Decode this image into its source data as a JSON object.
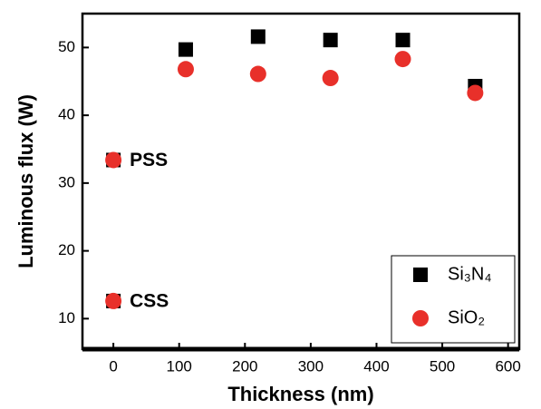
{
  "chart_data": {
    "type": "scatter",
    "x_label": "Thickness (nm)",
    "y_label": "Luminous flux (W)",
    "xlim": [
      -47,
      617
    ],
    "ylim": [
      5.5,
      55
    ],
    "xticks": [
      0,
      100,
      200,
      300,
      400,
      500,
      600
    ],
    "yticks": [
      10,
      20,
      30,
      40,
      50
    ],
    "legend": "lower right",
    "annotations": [
      "PSS",
      "CSS"
    ],
    "series": [
      {
        "name": "Si₃N₄",
        "color": "#000000",
        "marker": "square",
        "x": [
          0,
          0,
          110,
          220,
          330,
          440,
          550
        ],
        "values": [
          33.4,
          12.6,
          49.7,
          51.6,
          51.1,
          51.1,
          44.3
        ]
      },
      {
        "name": "SiO₂",
        "color": "#e8302a",
        "marker": "circle",
        "x": [
          0,
          0,
          110,
          220,
          330,
          440,
          550
        ],
        "values": [
          33.4,
          12.6,
          46.8,
          46.1,
          45.5,
          48.3,
          43.3
        ]
      }
    ]
  }
}
